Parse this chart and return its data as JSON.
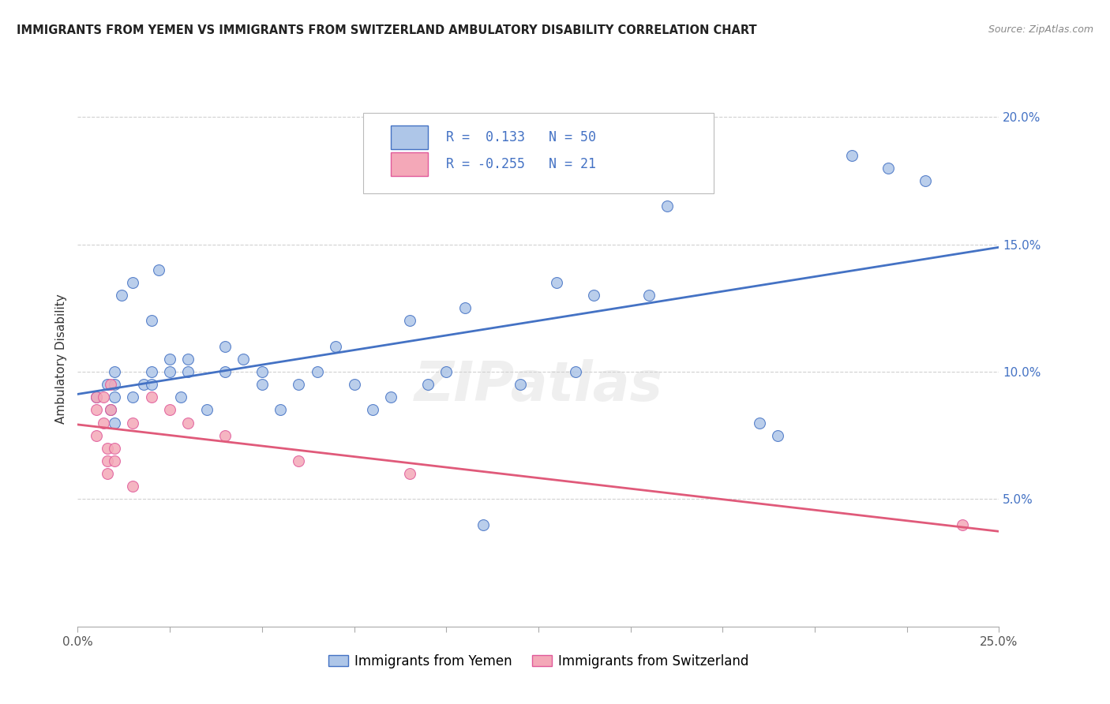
{
  "title": "IMMIGRANTS FROM YEMEN VS IMMIGRANTS FROM SWITZERLAND AMBULATORY DISABILITY CORRELATION CHART",
  "source": "Source: ZipAtlas.com",
  "ylabel": "Ambulatory Disability",
  "xlim": [
    0.0,
    0.25
  ],
  "ylim": [
    0.0,
    0.21
  ],
  "yticks": [
    0.05,
    0.1,
    0.15,
    0.2
  ],
  "ytick_labels": [
    "5.0%",
    "10.0%",
    "15.0%",
    "20.0%"
  ],
  "legend_label1": "Immigrants from Yemen",
  "legend_label2": "Immigrants from Switzerland",
  "R1": 0.133,
  "N1": 50,
  "R2": -0.255,
  "N2": 21,
  "color1": "#aec6e8",
  "color2": "#f4a8b8",
  "line_color1": "#4472c4",
  "line_color2": "#e05a7a",
  "background_color": "#ffffff",
  "watermark": "ZIPatlas",
  "yemen_x": [
    0.005,
    0.008,
    0.009,
    0.01,
    0.01,
    0.01,
    0.01,
    0.012,
    0.015,
    0.015,
    0.018,
    0.02,
    0.02,
    0.02,
    0.022,
    0.025,
    0.025,
    0.028,
    0.03,
    0.03,
    0.035,
    0.04,
    0.04,
    0.045,
    0.05,
    0.05,
    0.055,
    0.06,
    0.065,
    0.07,
    0.075,
    0.08,
    0.085,
    0.09,
    0.095,
    0.1,
    0.105,
    0.11,
    0.12,
    0.13,
    0.135,
    0.14,
    0.155,
    0.16,
    0.17,
    0.185,
    0.19,
    0.21,
    0.22,
    0.23
  ],
  "yemen_y": [
    0.09,
    0.095,
    0.085,
    0.08,
    0.09,
    0.095,
    0.1,
    0.13,
    0.135,
    0.09,
    0.095,
    0.1,
    0.12,
    0.095,
    0.14,
    0.1,
    0.105,
    0.09,
    0.1,
    0.105,
    0.085,
    0.1,
    0.11,
    0.105,
    0.095,
    0.1,
    0.085,
    0.095,
    0.1,
    0.11,
    0.095,
    0.085,
    0.09,
    0.12,
    0.095,
    0.1,
    0.125,
    0.04,
    0.095,
    0.135,
    0.1,
    0.13,
    0.13,
    0.165,
    0.175,
    0.08,
    0.075,
    0.185,
    0.18,
    0.175
  ],
  "swiss_x": [
    0.005,
    0.005,
    0.005,
    0.007,
    0.007,
    0.008,
    0.008,
    0.008,
    0.009,
    0.009,
    0.01,
    0.01,
    0.015,
    0.015,
    0.02,
    0.025,
    0.03,
    0.04,
    0.06,
    0.09,
    0.24
  ],
  "swiss_y": [
    0.085,
    0.09,
    0.075,
    0.08,
    0.09,
    0.06,
    0.065,
    0.07,
    0.085,
    0.095,
    0.065,
    0.07,
    0.055,
    0.08,
    0.09,
    0.085,
    0.08,
    0.075,
    0.065,
    0.06,
    0.04
  ]
}
